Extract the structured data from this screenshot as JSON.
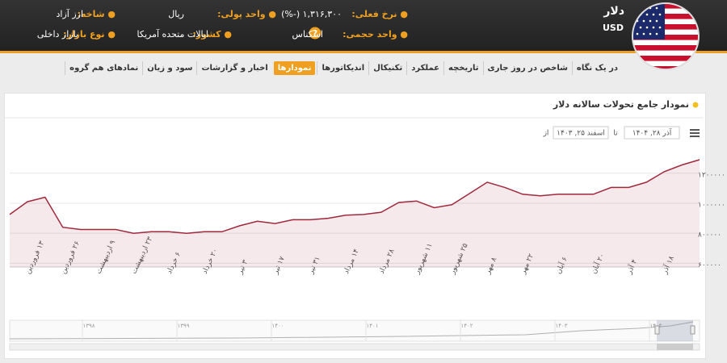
{
  "header": {
    "name": "دلار",
    "symbol": "USD",
    "fields": [
      {
        "label": "نرخ فعلی:",
        "value": "۱,۳۱۶,۳۰۰ (-%)"
      },
      {
        "label": "واحد پولی:",
        "value": "ریال"
      },
      {
        "label": "شاخه:",
        "value": "ارز آزاد"
      },
      {
        "label": "واحد حجمی:",
        "value": "اسکناس"
      },
      {
        "label": "کشور:",
        "value": "ایالات متحده آمریکا"
      },
      {
        "label": "نوع بازار:",
        "value": "بازار داخلی"
      }
    ]
  },
  "tabs": [
    "در یک نگاه",
    "شاخص در روز جاری",
    "تاریخچه",
    "عملکرد",
    "تکنیکال",
    "اندیکاتورها",
    "نمودارها",
    "اخبار و گزارشات",
    "سود و زیان",
    "نمادهای هم گروه"
  ],
  "active_tab": 6,
  "panel": {
    "title": "نمودار جامع تحولات سالانه دلار",
    "to_label": "تا",
    "to_date": "آذر ۲۸, ۱۴۰۴",
    "from_label": "از",
    "from_date": "اسفند ۲۵, ۱۴۰۳"
  },
  "chart_data": {
    "type": "area",
    "categories": [
      null,
      "۱۳ فروردین",
      null,
      "۲۶ فروردین",
      null,
      "۹ اردیبهشت",
      null,
      "۲۳ اردیبهشت",
      null,
      "۶ خرداد",
      null,
      "۲۰ خرداد",
      null,
      "۳ تیر",
      null,
      "۱۷ تیر",
      null,
      "۳۱ تیر",
      null,
      "۱۴ مرداد",
      null,
      "۲۸ مرداد",
      null,
      "۱۱ شهریور",
      null,
      "۲۵ شهریور",
      null,
      "۸ مهر",
      null,
      "۲۲ مهر",
      null,
      "۶ آبان",
      null,
      "۲۰ آبان",
      null,
      "۴ آذر",
      null,
      "۱۸ آذر",
      null,
      null
    ],
    "values": [
      925000,
      1010000,
      1040000,
      840000,
      825000,
      825000,
      825000,
      800000,
      810000,
      810000,
      800000,
      810000,
      810000,
      850000,
      880000,
      865000,
      890000,
      890000,
      900000,
      920000,
      925000,
      940000,
      1005000,
      1015000,
      970000,
      990000,
      1065000,
      1140000,
      1105000,
      1060000,
      1050000,
      1060000,
      1060000,
      1060000,
      1105000,
      1105000,
      1140000,
      1210000,
      1255000,
      1290000
    ],
    "color": "#a0283c",
    "ylim": [
      575000,
      1360000
    ],
    "yticks": [
      {
        "value": 600000,
        "label": "۶۰۰۰۰۰"
      },
      {
        "value": 800000,
        "label": "۸۰۰۰۰۰"
      },
      {
        "value": 1000000,
        "label": "۱۰۰۰۰۰۰"
      },
      {
        "value": 1200000,
        "label": "۱۲۰۰۰۰۰"
      }
    ],
    "grid": true
  },
  "navigator": {
    "labels": [
      "۱۳۹۸",
      "۱۳۹۹",
      "۱۴۰۰",
      "۱۴۰۱",
      "۱۴۰۲",
      "۱۴۰۳",
      "۱۴۰۴"
    ]
  }
}
